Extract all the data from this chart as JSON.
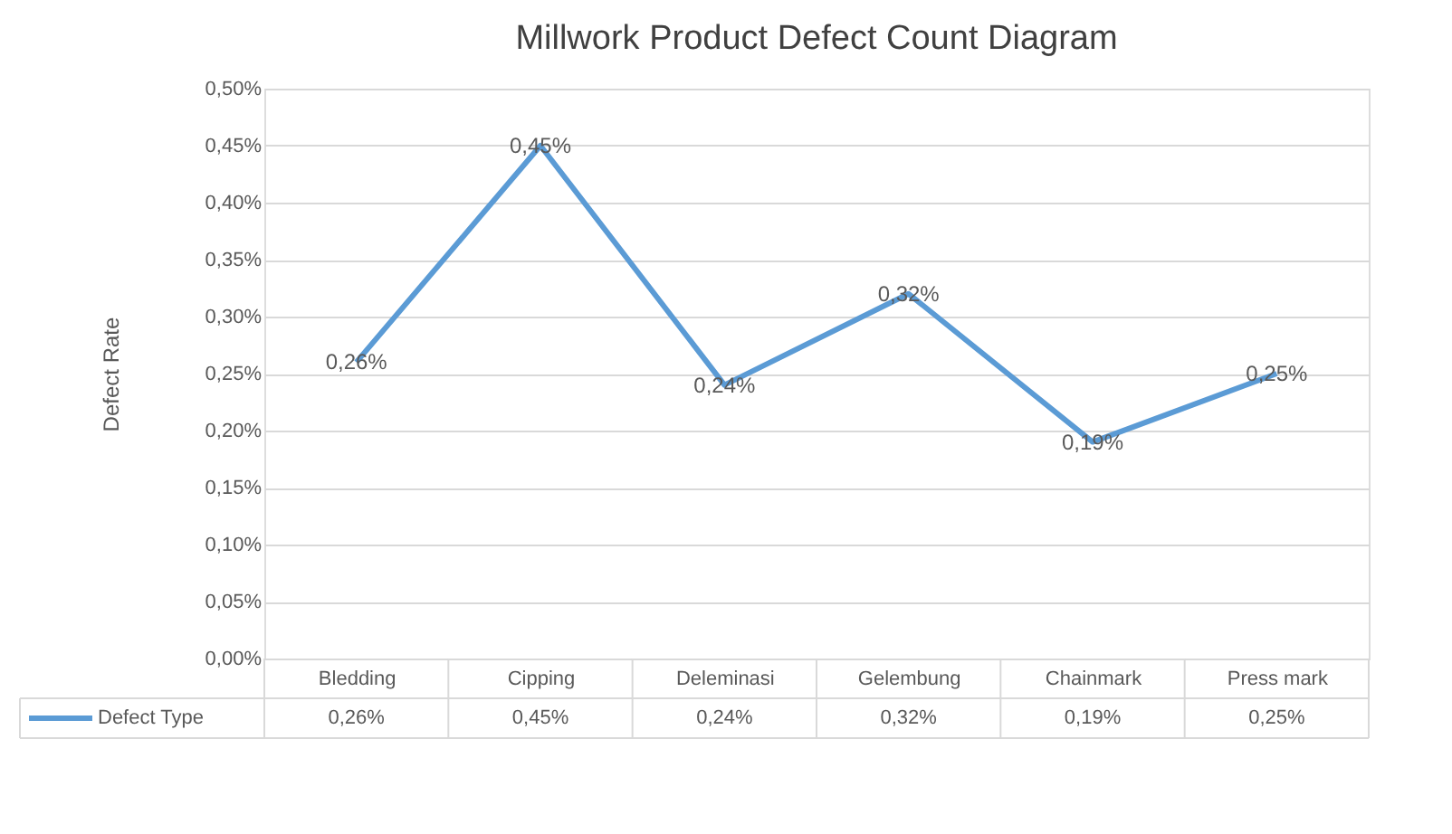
{
  "chart_data": {
    "type": "line",
    "title": "Millwork Product Defect Count Diagram",
    "ylabel": "Defect Rate",
    "categories": [
      "Bledding",
      "Cipping",
      "Deleminasi",
      "Gelembung",
      "Chainmark",
      "Press mark"
    ],
    "series": [
      {
        "name": "Defect Type",
        "color": "#5b9bd5",
        "values": [
          0.26,
          0.45,
          0.24,
          0.32,
          0.19,
          0.25
        ],
        "value_labels": [
          "0,26%",
          "0,45%",
          "0,24%",
          "0,32%",
          "0,19%",
          "0,25%"
        ]
      }
    ],
    "ylim": [
      0,
      0.5
    ],
    "yticks": [
      {
        "value": 0,
        "label": "0,00%"
      },
      {
        "value": 0.05,
        "label": "0,05%"
      },
      {
        "value": 0.1,
        "label": "0,10%"
      },
      {
        "value": 0.15,
        "label": "0,15%"
      },
      {
        "value": 0.2,
        "label": "0,20%"
      },
      {
        "value": 0.25,
        "label": "0,25%"
      },
      {
        "value": 0.3,
        "label": "0,30%"
      },
      {
        "value": 0.35,
        "label": "0,35%"
      },
      {
        "value": 0.4,
        "label": "0,40%"
      },
      {
        "value": 0.45,
        "label": "0,45%"
      },
      {
        "value": 0.5,
        "label": "0,50%"
      }
    ],
    "grid": "y",
    "line_style": "solid"
  }
}
